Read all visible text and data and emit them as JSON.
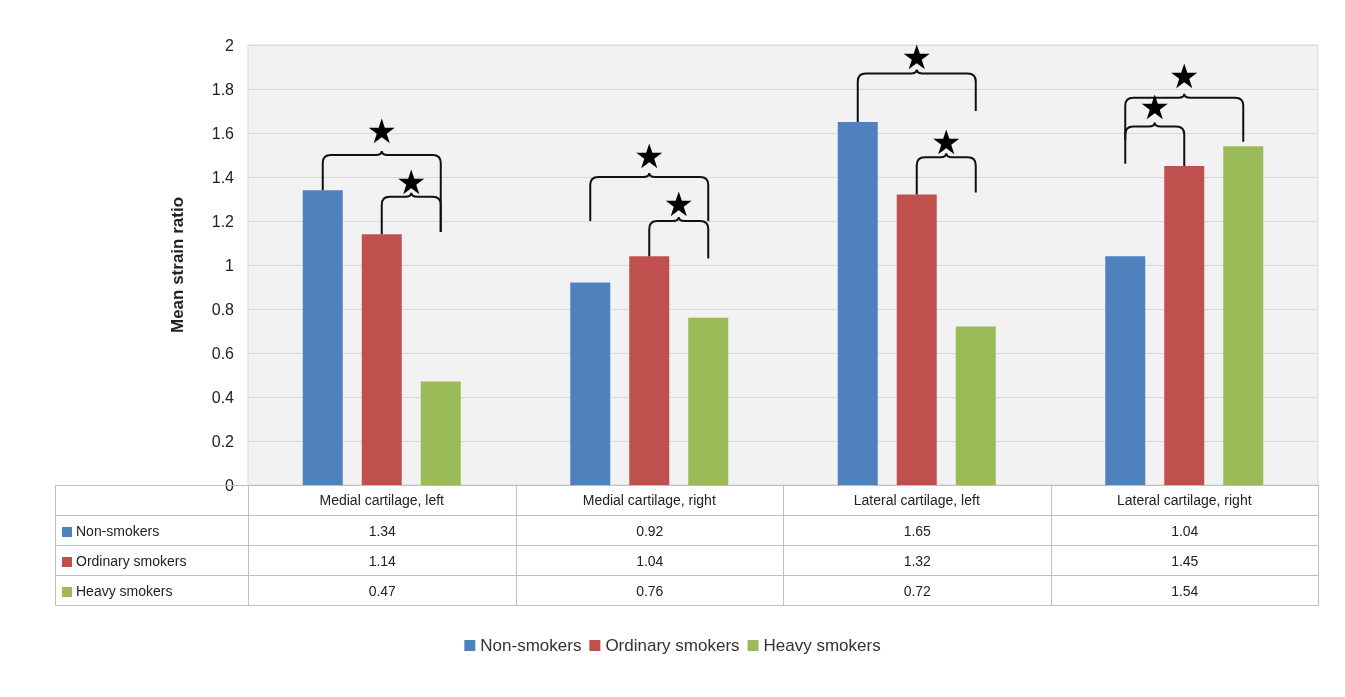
{
  "chart_data": {
    "type": "bar",
    "ylabel": "Mean strain ratio",
    "categories": [
      "Medial cartilage, left",
      "Medial cartilage, right",
      "Lateral cartilage, left",
      "Lateral cartilage, right"
    ],
    "series": [
      {
        "name": "Non-smokers",
        "color": "#4f81bd",
        "values": [
          1.34,
          0.92,
          1.65,
          1.04
        ]
      },
      {
        "name": "Ordinary smokers",
        "color": "#c0504d",
        "values": [
          1.14,
          1.04,
          1.32,
          1.45
        ]
      },
      {
        "name": "Heavy smokers",
        "color": "#9bbb59",
        "values": [
          0.47,
          0.76,
          0.72,
          1.54
        ]
      }
    ],
    "ylim": [
      0,
      2
    ],
    "yticks": [
      0,
      0.2,
      0.4,
      0.6,
      0.8,
      1,
      1.2,
      1.4,
      1.6,
      1.8,
      2
    ],
    "grid": "y",
    "legend": "bottom",
    "data_labels": true,
    "annotations": [
      "★",
      "★",
      "★",
      "★",
      "★",
      "★",
      "★",
      "★"
    ]
  }
}
